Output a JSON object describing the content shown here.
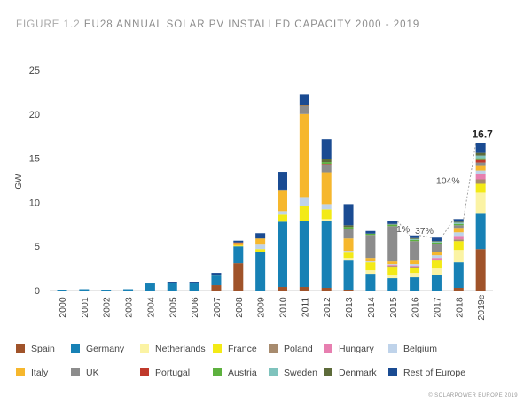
{
  "title": {
    "prefix": "FIGURE 1.2",
    "text": "EU28 ANNUAL SOLAR PV INSTALLED CAPACITY 2000 - 2019"
  },
  "copyright": "© SOLARPOWER EUROPE 2019",
  "colors": {
    "Spain": "#a0532a",
    "Germany": "#1781b5",
    "Netherlands": "#fbf3a4",
    "France": "#f3ea16",
    "Poland": "#a78b6e",
    "Hungary": "#e77fb0",
    "Belgium": "#bfd3ea",
    "Italy": "#f6b72d",
    "UK": "#8c8c8c",
    "Portugal": "#c0392b",
    "Austria": "#5db13e",
    "Sweden": "#7fc3bd",
    "Denmark": "#5d6b3a",
    "Rest of Europe": "#1a4b92"
  },
  "chart_data": {
    "type": "bar",
    "stacked": true,
    "categories": [
      "2000",
      "2001",
      "2002",
      "2003",
      "2004",
      "2005",
      "2006",
      "2007",
      "2008",
      "2009",
      "2010",
      "2011",
      "2012",
      "2013",
      "2014",
      "2015",
      "2016",
      "2017",
      "2018",
      "2019e"
    ],
    "ylabel": "GW",
    "ylim": [
      0,
      25
    ],
    "yticks": [
      0,
      5,
      10,
      15,
      20,
      25
    ],
    "grid": false,
    "legend_position": "bottom",
    "series": [
      {
        "name": "Spain",
        "values": [
          0,
          0,
          0,
          0,
          0,
          0,
          0,
          0.6,
          3.1,
          0,
          0.4,
          0.4,
          0.3,
          0.1,
          0,
          0,
          0,
          0,
          0.3,
          4.7
        ]
      },
      {
        "name": "Germany",
        "values": [
          0.1,
          0.15,
          0.1,
          0.15,
          0.8,
          0.9,
          0.8,
          1.1,
          1.9,
          4.4,
          7.4,
          7.5,
          7.6,
          3.3,
          1.9,
          1.4,
          1.5,
          1.8,
          2.9,
          4.0
        ]
      },
      {
        "name": "Netherlands",
        "values": [
          0,
          0,
          0,
          0,
          0,
          0,
          0,
          0,
          0,
          0,
          0,
          0,
          0.2,
          0.3,
          0.4,
          0.4,
          0.5,
          0.7,
          1.4,
          2.4
        ]
      },
      {
        "name": "France",
        "values": [
          0,
          0,
          0,
          0,
          0,
          0,
          0,
          0,
          0.1,
          0.3,
          0.8,
          1.7,
          1.1,
          0.6,
          0.9,
          0.9,
          0.6,
          0.9,
          1.0,
          1.0
        ]
      },
      {
        "name": "Poland",
        "values": [
          0,
          0,
          0,
          0,
          0,
          0,
          0,
          0,
          0,
          0,
          0,
          0,
          0,
          0,
          0,
          0.1,
          0.1,
          0.1,
          0.2,
          0.5
        ]
      },
      {
        "name": "Hungary",
        "values": [
          0,
          0,
          0,
          0,
          0,
          0,
          0,
          0,
          0,
          0,
          0,
          0,
          0,
          0,
          0,
          0.1,
          0.1,
          0.2,
          0.4,
          0.6
        ]
      },
      {
        "name": "Belgium",
        "values": [
          0,
          0,
          0,
          0,
          0,
          0,
          0,
          0,
          0,
          0.5,
          0.4,
          1.0,
          0.6,
          0.2,
          0.1,
          0.1,
          0.2,
          0.3,
          0.4,
          0.4
        ]
      },
      {
        "name": "Italy",
        "values": [
          0,
          0,
          0,
          0,
          0,
          0,
          0,
          0.1,
          0.3,
          0.7,
          2.3,
          9.4,
          3.6,
          1.4,
          0.4,
          0.3,
          0.4,
          0.4,
          0.5,
          0.6
        ]
      },
      {
        "name": "UK",
        "values": [
          0,
          0,
          0,
          0,
          0,
          0,
          0,
          0,
          0,
          0,
          0.1,
          0.9,
          0.9,
          1.1,
          2.6,
          4.0,
          2.2,
          0.9,
          0.3,
          0.3
        ]
      },
      {
        "name": "Portugal",
        "values": [
          0,
          0,
          0,
          0,
          0,
          0,
          0,
          0,
          0.05,
          0,
          0,
          0.05,
          0.05,
          0,
          0,
          0,
          0,
          0,
          0,
          0.3
        ]
      },
      {
        "name": "Austria",
        "values": [
          0,
          0,
          0,
          0,
          0,
          0,
          0,
          0,
          0,
          0,
          0.05,
          0.1,
          0.2,
          0.2,
          0.15,
          0.15,
          0.15,
          0.15,
          0.15,
          0.2
        ]
      },
      {
        "name": "Sweden",
        "values": [
          0,
          0,
          0,
          0,
          0,
          0,
          0,
          0,
          0,
          0,
          0,
          0,
          0,
          0,
          0,
          0.05,
          0.1,
          0.1,
          0.15,
          0.3
        ]
      },
      {
        "name": "Denmark",
        "values": [
          0,
          0,
          0,
          0,
          0,
          0,
          0,
          0,
          0,
          0,
          0,
          0,
          0.4,
          0.2,
          0,
          0.05,
          0.1,
          0.05,
          0.1,
          0.3
        ]
      },
      {
        "name": "Rest of Europe",
        "values": [
          0,
          0,
          0,
          0,
          0,
          0.1,
          0.2,
          0.2,
          0.2,
          0.6,
          2.0,
          1.2,
          2.2,
          2.4,
          0.3,
          0.3,
          0.3,
          0.4,
          0.3,
          1.1
        ]
      }
    ],
    "annotations": [
      {
        "category": "2016",
        "text": "1%"
      },
      {
        "category": "2017",
        "text": "37%"
      },
      {
        "category": "2018",
        "text": "104%"
      },
      {
        "category": "2019e",
        "text": "16.7"
      }
    ]
  }
}
